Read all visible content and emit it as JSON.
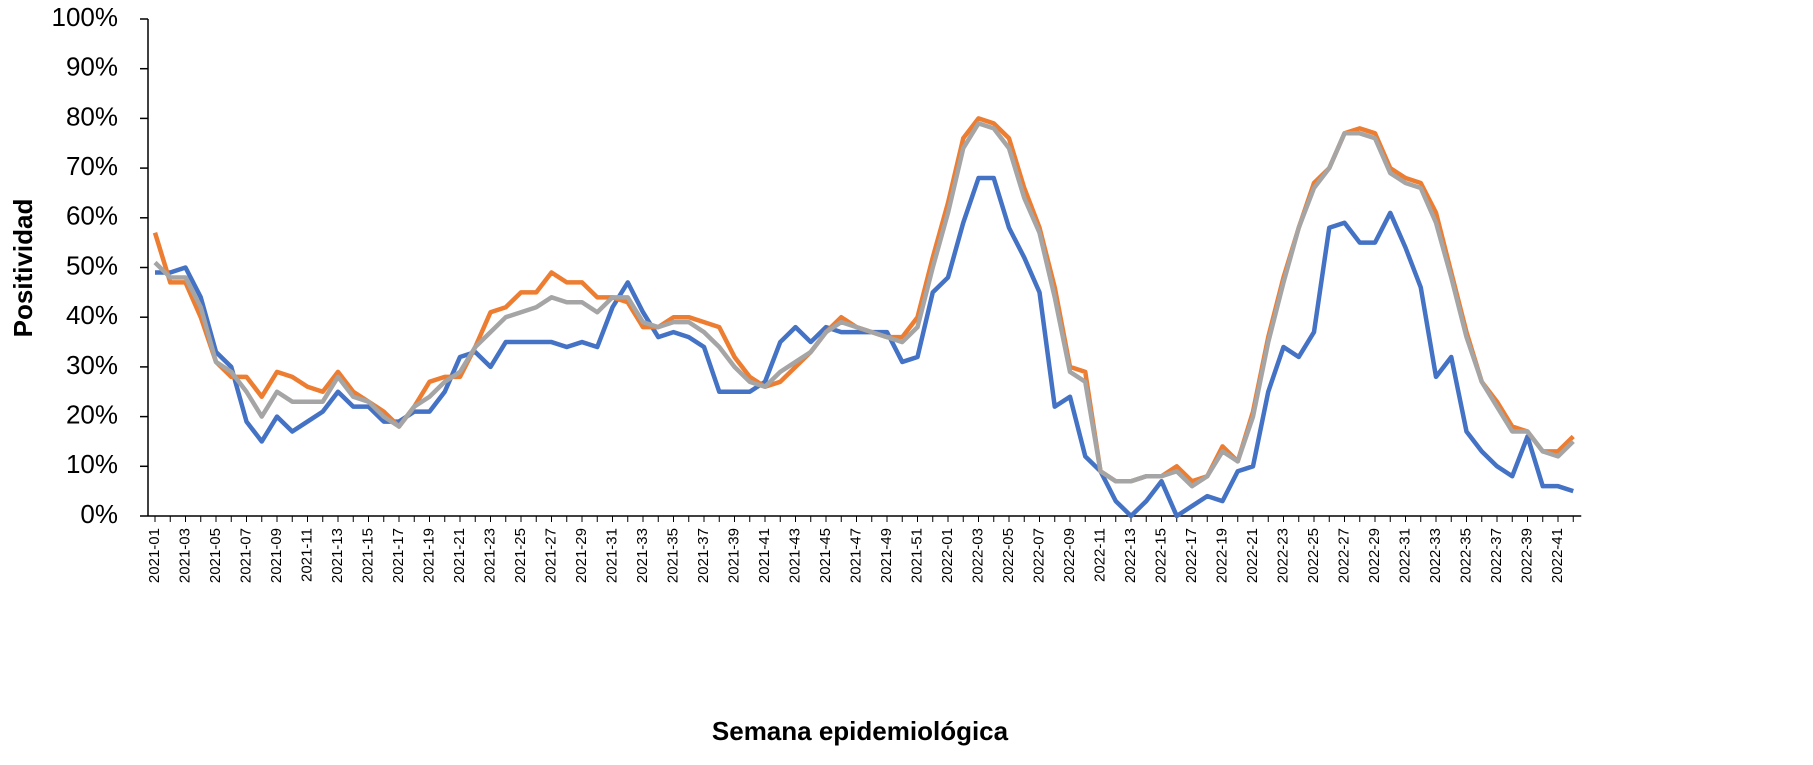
{
  "chart_data": {
    "type": "line",
    "x_label": "Semana epidemiológica",
    "y_label": "Positividad",
    "categories": [
      "2021-01",
      null,
      "2021-03",
      null,
      "2021-05",
      null,
      "2021-07",
      null,
      "2021-09",
      null,
      "2021-11",
      null,
      "2021-13",
      null,
      "2021-15",
      null,
      "2021-17",
      null,
      "2021-19",
      null,
      "2021-21",
      null,
      "2021-23",
      null,
      "2021-25",
      null,
      "2021-27",
      null,
      "2021-29",
      null,
      "2021-31",
      null,
      "2021-33",
      null,
      "2021-35",
      null,
      "2021-37",
      null,
      "2021-39",
      null,
      "2021-41",
      null,
      "2021-43",
      null,
      "2021-45",
      null,
      "2021-47",
      null,
      "2021-49",
      null,
      "2021-51",
      null,
      "2022-01",
      null,
      "2022-03",
      null,
      "2022-05",
      null,
      "2022-07",
      null,
      "2022-09",
      null,
      "2022-11",
      null,
      "2022-13",
      null,
      "2022-15",
      null,
      "2022-17",
      null,
      "2022-19",
      null,
      "2022-21",
      null,
      "2022-23",
      null,
      "2022-25",
      null,
      "2022-27",
      null,
      "2022-29",
      null,
      "2022-31",
      null,
      "2022-33",
      null,
      "2022-35",
      null,
      "2022-37",
      null,
      "2022-39",
      null,
      "2022-41",
      null
    ],
    "series": [
      {
        "color": "#4472c4",
        "values": [
          49,
          49,
          50,
          44,
          33,
          30,
          19,
          15,
          20,
          17,
          19,
          21,
          25,
          22,
          22,
          19,
          19,
          21,
          21,
          25,
          32,
          33,
          30,
          35,
          35,
          35,
          35,
          34,
          35,
          34,
          42,
          47,
          41,
          36,
          37,
          36,
          34,
          25,
          25,
          25,
          27,
          35,
          38,
          35,
          38,
          37,
          37,
          37,
          37,
          31,
          32,
          45,
          48,
          59,
          68,
          68,
          58,
          52,
          45,
          22,
          24,
          12,
          9,
          3,
          0,
          3,
          7,
          0,
          2,
          4,
          3,
          9,
          10,
          25,
          34,
          32,
          37,
          58,
          59,
          55,
          55,
          61,
          54,
          46,
          28,
          32,
          17,
          13,
          10,
          8,
          16,
          6,
          6,
          5
        ]
      },
      {
        "color": "#ed7d31",
        "values": [
          57,
          47,
          47,
          40,
          31,
          28,
          28,
          24,
          29,
          28,
          26,
          25,
          29,
          25,
          23,
          21,
          18,
          22,
          27,
          28,
          28,
          34,
          41,
          42,
          45,
          45,
          49,
          47,
          47,
          44,
          44,
          43,
          38,
          38,
          40,
          40,
          39,
          38,
          32,
          28,
          26,
          27,
          30,
          33,
          37,
          40,
          38,
          37,
          36,
          36,
          40,
          52,
          63,
          76,
          80,
          79,
          76,
          66,
          58,
          46,
          30,
          29,
          9,
          7,
          7,
          8,
          8,
          10,
          7,
          8,
          14,
          11,
          21,
          36,
          48,
          58,
          67,
          70,
          77,
          78,
          77,
          70,
          68,
          67,
          61,
          49,
          37,
          27,
          23,
          18,
          17,
          13,
          13,
          16
        ]
      },
      {
        "color": "#a5a5a5",
        "values": [
          51,
          48,
          48,
          42,
          31,
          29,
          25,
          20,
          25,
          23,
          23,
          23,
          28,
          24,
          23,
          20,
          18,
          22,
          24,
          27,
          29,
          34,
          37,
          40,
          41,
          42,
          44,
          43,
          43,
          41,
          44,
          44,
          39,
          38,
          39,
          39,
          37,
          34,
          30,
          27,
          26,
          29,
          31,
          33,
          37,
          39,
          38,
          37,
          36,
          35,
          38,
          50,
          61,
          74,
          79,
          78,
          74,
          64,
          57,
          44,
          29,
          27,
          9,
          7,
          7,
          8,
          8,
          9,
          6,
          8,
          13,
          11,
          20,
          35,
          47,
          58,
          66,
          70,
          77,
          77,
          76,
          69,
          67,
          66,
          59,
          48,
          36,
          27,
          22,
          17,
          17,
          13,
          12,
          15
        ]
      }
    ],
    "ylim": [
      0,
      100
    ],
    "yticks": [
      {
        "value": 0,
        "label": "0%"
      },
      {
        "value": 10,
        "label": "10%"
      },
      {
        "value": 20,
        "label": "20%"
      },
      {
        "value": 30,
        "label": "30%"
      },
      {
        "value": 40,
        "label": "40%"
      },
      {
        "value": 50,
        "label": "50%"
      },
      {
        "value": 60,
        "label": "60%"
      },
      {
        "value": 70,
        "label": "70%"
      },
      {
        "value": 80,
        "label": "80%"
      },
      {
        "value": 90,
        "label": "90%"
      },
      {
        "value": 100,
        "label": "100%"
      }
    ]
  }
}
